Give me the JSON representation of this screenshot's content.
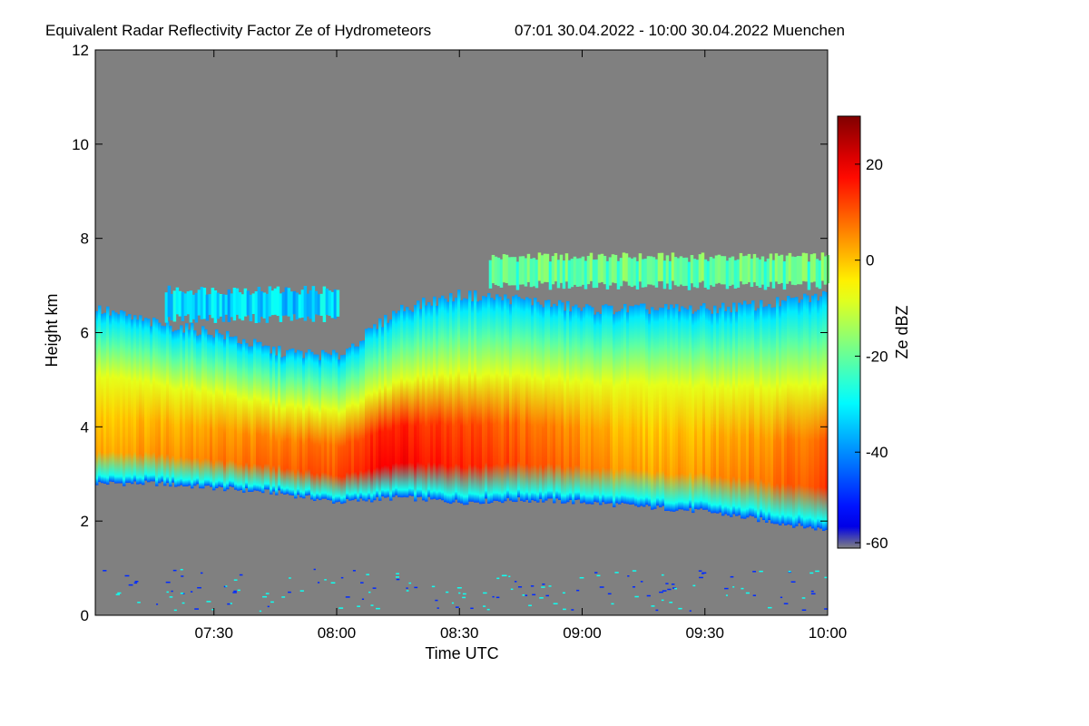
{
  "chart_data": {
    "type": "heatmap",
    "title": "Equivalent Radar Reflectivity Factor Ze of Hydrometeors",
    "subtitle": "07:01 30.04.2022 - 10:00 30.04.2022 Muenchen",
    "xlabel": "Time UTC",
    "ylabel": "Height km",
    "xlim_hours": [
      7.0167,
      10.0
    ],
    "ylim": [
      0,
      12
    ],
    "x_ticks": [
      {
        "label": "07:30",
        "value": 7.5
      },
      {
        "label": "08:00",
        "value": 8.0
      },
      {
        "label": "08:30",
        "value": 8.5
      },
      {
        "label": "09:00",
        "value": 9.0
      },
      {
        "label": "09:30",
        "value": 9.5
      },
      {
        "label": "10:00",
        "value": 10.0
      }
    ],
    "y_ticks": [
      0,
      2,
      4,
      6,
      8,
      10,
      12
    ],
    "background_color": "#808080",
    "colorbar": {
      "label": "Ze dBZ",
      "range": [
        -60,
        30
      ],
      "ticks": [
        20,
        0,
        -20,
        -40,
        -60
      ],
      "colormap": "jet"
    },
    "layers": [
      {
        "name": "main-precip-layer",
        "profile": [
          {
            "x": 7.02,
            "base": 2.8,
            "top": 6.5
          },
          {
            "x": 7.25,
            "base": 2.8,
            "top": 6.2
          },
          {
            "x": 7.5,
            "base": 2.7,
            "top": 6.0
          },
          {
            "x": 7.75,
            "base": 2.6,
            "top": 5.6
          },
          {
            "x": 8.0,
            "base": 2.4,
            "top": 5.5
          },
          {
            "x": 8.25,
            "base": 2.5,
            "top": 6.5
          },
          {
            "x": 8.5,
            "base": 2.4,
            "top": 6.8
          },
          {
            "x": 8.75,
            "base": 2.45,
            "top": 6.7
          },
          {
            "x": 9.0,
            "base": 2.4,
            "top": 6.5
          },
          {
            "x": 9.25,
            "base": 2.3,
            "top": 6.5
          },
          {
            "x": 9.5,
            "base": 2.2,
            "top": 6.5
          },
          {
            "x": 9.75,
            "base": 2.0,
            "top": 6.6
          },
          {
            "x": 10.0,
            "base": 1.8,
            "top": 6.8
          }
        ],
        "core": [
          {
            "x": 7.02,
            "ze": 4
          },
          {
            "x": 7.5,
            "ze": 8
          },
          {
            "x": 7.75,
            "ze": 10
          },
          {
            "x": 8.0,
            "ze": 12
          },
          {
            "x": 8.2,
            "ze": 20
          },
          {
            "x": 8.5,
            "ze": 16
          },
          {
            "x": 8.75,
            "ze": 12
          },
          {
            "x": 9.0,
            "ze": 8
          },
          {
            "x": 9.25,
            "ze": 4
          },
          {
            "x": 9.5,
            "ze": 6
          },
          {
            "x": 9.75,
            "ze": 8
          },
          {
            "x": 10.0,
            "ze": 14
          }
        ]
      },
      {
        "name": "upper-cloud-band",
        "x_range": [
          8.62,
          10.0
        ],
        "base": 7.0,
        "top": 7.6,
        "ze": -18
      },
      {
        "name": "upper-cloud-fragment",
        "x_range": [
          7.3,
          8.0
        ],
        "base": 6.3,
        "top": 6.9,
        "ze": -30
      },
      {
        "name": "low-level-clutter",
        "x_range": [
          7.02,
          10.0
        ],
        "base": 0.1,
        "top": 1.0,
        "ze": -35
      }
    ]
  }
}
